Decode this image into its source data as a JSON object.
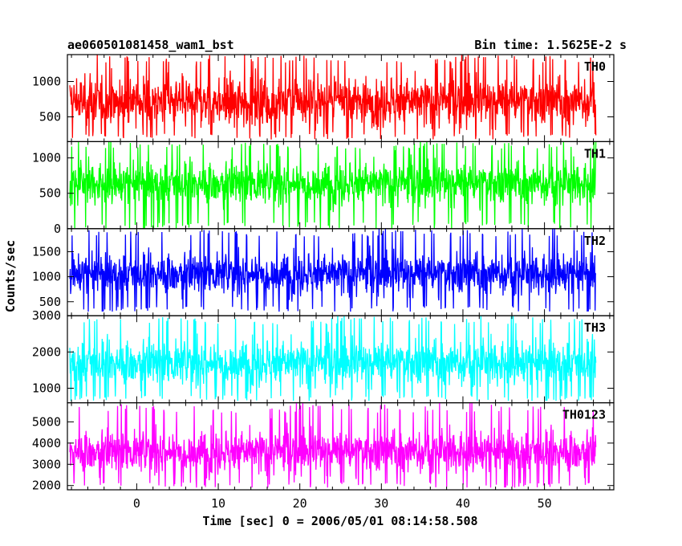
{
  "chart_data": {
    "type": "line",
    "title_left": "ae060501081458_wam1_bst",
    "title_right": "Bin time: 1.5625E-2 s",
    "xlabel": "Time [sec] 0 = 2006/05/01 08:14:58.508",
    "ylabel": "Counts/sec",
    "xlim": [
      -8.5,
      58.5
    ],
    "x_ticks": [
      0,
      10,
      20,
      30,
      40,
      50
    ],
    "data_x_range": [
      -8.2,
      56.3
    ],
    "panels": [
      {
        "name": "TH0",
        "color": "#ff0000",
        "ylim": [
          150,
          1380
        ],
        "y_ticks": [
          500,
          1000
        ],
        "noise": {
          "mean": 720,
          "spread": 240,
          "min": 180,
          "max": 1380
        }
      },
      {
        "name": "TH1",
        "color": "#00ff00",
        "ylim": [
          0,
          1230
        ],
        "y_ticks": [
          0,
          500,
          1000
        ],
        "noise": {
          "mean": 640,
          "spread": 210,
          "min": 0,
          "max": 1230
        }
      },
      {
        "name": "TH2",
        "color": "#0000ff",
        "ylim": [
          220,
          1960
        ],
        "y_ticks": [
          500,
          1000,
          1500
        ],
        "noise": {
          "mean": 1060,
          "spread": 290,
          "min": 300,
          "max": 1960
        }
      },
      {
        "name": "TH3",
        "color": "#00ffff",
        "ylim": [
          600,
          3000
        ],
        "y_ticks": [
          1000,
          2000,
          3000
        ],
        "noise": {
          "mean": 1700,
          "spread": 440,
          "min": 650,
          "max": 3000
        }
      },
      {
        "name": "TH0123",
        "color": "#ff00ff",
        "ylim": [
          1800,
          5900
        ],
        "y_ticks": [
          2000,
          3000,
          4000,
          5000
        ],
        "noise": {
          "mean": 3600,
          "spread": 700,
          "min": 1900,
          "max": 5900
        }
      }
    ]
  }
}
